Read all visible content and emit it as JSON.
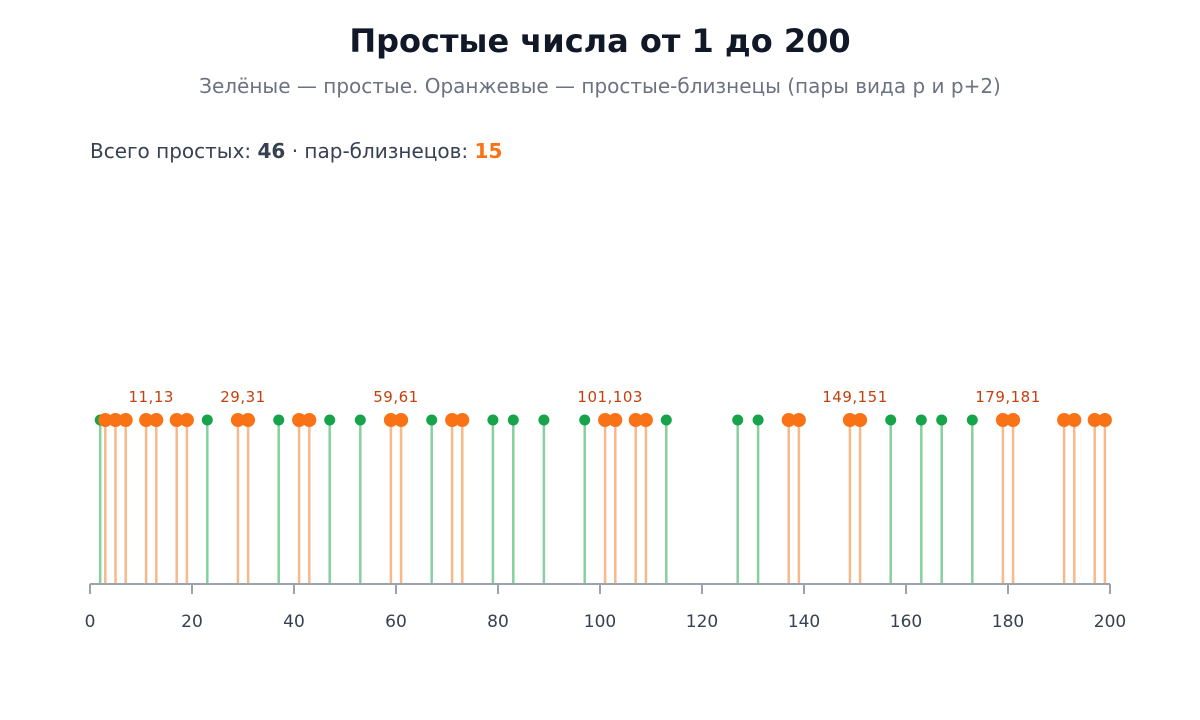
{
  "title": "Простые числа от 1 до 200",
  "subtitle": "Зелёные — простые. Оранжевые — простые-близнецы (пары вида p и p+2)",
  "stats": {
    "primes_label": "Всего простых: ",
    "primes_count": "46",
    "separator": " · пар-близнецов: ",
    "twins_count": "15"
  },
  "colors": {
    "prime": "#16a34a",
    "prime_stem": "#86d0a0",
    "twin": "#f97316",
    "twin_stem": "#f8b98a",
    "annotation": "#c2410c",
    "axis": "#9ca3af",
    "tick_label": "#374151"
  },
  "chart_data": {
    "type": "stem",
    "xlim": [
      0,
      200
    ],
    "x_ticks": [
      0,
      20,
      40,
      60,
      80,
      100,
      120,
      140,
      160,
      180,
      200
    ],
    "primes": [
      2,
      3,
      5,
      7,
      11,
      13,
      17,
      19,
      23,
      29,
      31,
      37,
      41,
      43,
      47,
      53,
      59,
      61,
      67,
      71,
      73,
      79,
      83,
      89,
      97,
      101,
      103,
      107,
      109,
      113,
      127,
      131,
      137,
      139,
      149,
      151,
      157,
      163,
      167,
      173,
      179,
      181,
      191,
      193,
      197,
      199
    ],
    "twin_primes": [
      3,
      5,
      7,
      11,
      13,
      17,
      19,
      29,
      31,
      41,
      43,
      59,
      61,
      71,
      73,
      101,
      103,
      107,
      109,
      137,
      139,
      149,
      151,
      179,
      181,
      191,
      193,
      197,
      199
    ],
    "annotations": [
      {
        "x": 12,
        "text": "11,13"
      },
      {
        "x": 30,
        "text": "29,31"
      },
      {
        "x": 60,
        "text": "59,61"
      },
      {
        "x": 102,
        "text": "101,103"
      },
      {
        "x": 150,
        "text": "149,151"
      },
      {
        "x": 180,
        "text": "179,181"
      }
    ]
  }
}
